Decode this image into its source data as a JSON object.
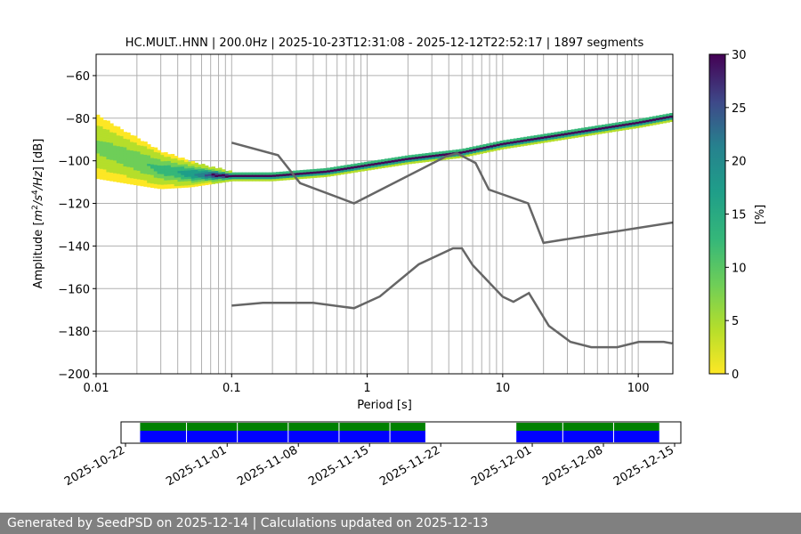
{
  "footer": {
    "text": "Generated by SeedPSD on 2025-12-14 | Calculations updated on 2025-12-13"
  },
  "chart_data": {
    "type": "heatmap",
    "title": "HC.MULT..HNN | 200.0Hz | 2025-10-23T12:31:08 - 2025-12-12T22:52:17 | 1897 segments",
    "xlabel": "Period [s]",
    "ylabel": "Amplitude [m²/s⁴/Hz] [dB]",
    "x_scale": "log",
    "xlim": [
      0.01,
      180
    ],
    "ylim": [
      -200,
      -50
    ],
    "x_ticks": [
      {
        "value": 0.01,
        "label": "0.01"
      },
      {
        "value": 0.1,
        "label": "0.1"
      },
      {
        "value": 1,
        "label": "1"
      },
      {
        "value": 10,
        "label": "10"
      },
      {
        "value": 100,
        "label": "100"
      }
    ],
    "y_ticks": [
      -60,
      -80,
      -100,
      -120,
      -140,
      -160,
      -180,
      -200
    ],
    "grid": true,
    "colorbar": {
      "label": "[%]",
      "min": 0,
      "max": 30,
      "ticks": [
        0,
        5,
        10,
        15,
        20,
        25,
        30
      ],
      "colormap": "viridis_r"
    },
    "psd_mode_curve": {
      "period": [
        0.01,
        0.02,
        0.03,
        0.05,
        0.1,
        0.2,
        0.5,
        1,
        2,
        5,
        10,
        20,
        50,
        100,
        180
      ],
      "db": [
        -93,
        -100,
        -104,
        -106,
        -107,
        -107,
        -105,
        -102,
        -99,
        -96,
        -92,
        -89,
        -85,
        -82,
        -79
      ]
    },
    "noise_models": [
      {
        "name": "",
        "period": [
          0.1,
          0.22,
          0.32,
          0.8,
          3.8,
          4.6,
          6.3,
          7.9,
          15.4,
          20,
          354.8
        ],
        "db": [
          -91.5,
          -97.4,
          -110.5,
          -120,
          -98,
          -96.5,
          -101,
          -113.5,
          -120,
          -138.5,
          -126
        ]
      },
      {
        "name": "",
        "period": [
          0.1,
          0.17,
          0.4,
          0.8,
          1.24,
          2.4,
          4.3,
          5,
          6,
          10,
          12,
          15.6,
          21.9,
          31.6,
          45,
          70,
          101,
          154,
          178
        ],
        "db": [
          -168,
          -166.7,
          -166.7,
          -169.2,
          -163.7,
          -148.6,
          -141.1,
          -141.1,
          -149,
          -163.8,
          -166.2,
          -162.1,
          -177.5,
          -185,
          -187.5,
          -187.5,
          -185,
          -185,
          -185.7
        ]
      }
    ],
    "timeline": {
      "date_ticks": [
        "2025-10-22",
        "2025-11-01",
        "2025-11-08",
        "2025-11-15",
        "2025-11-22",
        "2025-12-01",
        "2025-12-08",
        "2025-12-15"
      ],
      "coverage_periods": [
        {
          "start": "2025-10-23",
          "end": "2025-11-19"
        },
        {
          "start": "2025-11-29",
          "end": "2025-12-12"
        }
      ],
      "colors": {
        "availability": "#008000",
        "segments": "#0000ff"
      }
    },
    "colors": {
      "noise_model": "#666666",
      "grid": "#b0b0b0"
    }
  }
}
